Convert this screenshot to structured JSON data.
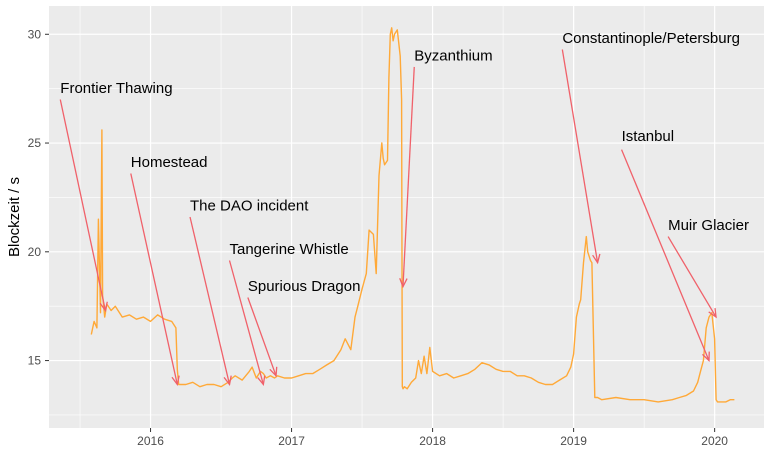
{
  "chart_data": {
    "type": "line",
    "ylabel": "Blockzeit / s",
    "xlabel": "",
    "title": "",
    "xlim": [
      2015.28,
      2020.35
    ],
    "ylim": [
      11.9,
      31.3
    ],
    "x_ticks": [
      2016,
      2017,
      2018,
      2019,
      2020
    ],
    "x_tick_labels": [
      "2016",
      "2017",
      "2018",
      "2019",
      "2020"
    ],
    "y_ticks": [
      15,
      20,
      25,
      30
    ],
    "y_tick_labels": [
      "15",
      "20",
      "25",
      "30"
    ],
    "grid": true,
    "colors": {
      "line": "#FFA938",
      "arrow": "#F0616A",
      "panel": "#EBEBEB",
      "grid": "#FFFFFF"
    },
    "series": [
      {
        "x": [
          2015.58,
          2015.6,
          2015.62,
          2015.63,
          2015.645,
          2015.655,
          2015.66,
          2015.675,
          2015.69,
          2015.72,
          2015.75,
          2015.8,
          2015.85,
          2015.9,
          2015.95,
          2016.0,
          2016.05,
          2016.1,
          2016.15,
          2016.18,
          2016.19,
          2016.2,
          2016.25,
          2016.3,
          2016.35,
          2016.4,
          2016.45,
          2016.5,
          2016.55,
          2016.58,
          2016.6,
          2016.65,
          2016.7,
          2016.72,
          2016.75,
          2016.78,
          2016.8,
          2016.82,
          2016.85,
          2016.88,
          2016.9,
          2016.95,
          2017.0,
          2017.05,
          2017.1,
          2017.15,
          2017.2,
          2017.25,
          2017.3,
          2017.35,
          2017.38,
          2017.42,
          2017.45,
          2017.47,
          2017.5,
          2017.53,
          2017.55,
          2017.58,
          2017.6,
          2017.62,
          2017.64,
          2017.65,
          2017.66,
          2017.68,
          2017.69,
          2017.7,
          2017.71,
          2017.72,
          2017.73,
          2017.75,
          2017.77,
          2017.78,
          2017.785,
          2017.79,
          2017.8,
          2017.82,
          2017.85,
          2017.88,
          2017.9,
          2017.92,
          2017.94,
          2017.96,
          2017.98,
          2018.0,
          2018.05,
          2018.1,
          2018.15,
          2018.2,
          2018.25,
          2018.3,
          2018.35,
          2018.4,
          2018.45,
          2018.5,
          2018.55,
          2018.6,
          2018.65,
          2018.7,
          2018.75,
          2018.8,
          2018.85,
          2018.9,
          2018.95,
          2018.98,
          2019.0,
          2019.02,
          2019.04,
          2019.05,
          2019.07,
          2019.09,
          2019.1,
          2019.12,
          2019.13,
          2019.15,
          2019.16,
          2019.17,
          2019.2,
          2019.3,
          2019.4,
          2019.5,
          2019.6,
          2019.7,
          2019.75,
          2019.8,
          2019.85,
          2019.88,
          2019.9,
          2019.92,
          2019.94,
          2019.96,
          2019.98,
          2020.0,
          2020.01,
          2020.02,
          2020.05,
          2020.08,
          2020.11,
          2020.14
        ],
        "y": [
          16.2,
          16.8,
          16.5,
          21.5,
          17.2,
          25.6,
          18.0,
          17.0,
          17.6,
          17.3,
          17.5,
          17.0,
          17.1,
          16.9,
          17.0,
          16.8,
          17.1,
          16.9,
          16.8,
          16.5,
          14.6,
          13.9,
          13.9,
          14.0,
          13.8,
          13.9,
          13.9,
          13.8,
          14.0,
          14.2,
          14.3,
          14.1,
          14.5,
          14.7,
          14.2,
          14.5,
          14.4,
          14.2,
          14.3,
          14.2,
          14.3,
          14.2,
          14.2,
          14.3,
          14.4,
          14.4,
          14.6,
          14.8,
          15.0,
          15.5,
          16.0,
          15.5,
          17.0,
          17.5,
          18.3,
          19.0,
          21.0,
          20.8,
          19.0,
          23.5,
          25.0,
          24.3,
          24.0,
          24.2,
          28.0,
          30.0,
          30.3,
          29.7,
          30.0,
          30.2,
          29.0,
          27.0,
          13.8,
          13.7,
          13.8,
          13.7,
          14.0,
          14.2,
          15.0,
          14.4,
          15.2,
          14.4,
          15.6,
          14.5,
          14.3,
          14.4,
          14.2,
          14.3,
          14.4,
          14.6,
          14.9,
          14.8,
          14.6,
          14.5,
          14.5,
          14.3,
          14.3,
          14.2,
          14.0,
          13.9,
          13.9,
          14.1,
          14.3,
          14.7,
          15.3,
          17.0,
          17.6,
          17.8,
          19.5,
          20.7,
          20.0,
          19.6,
          19.5,
          13.3,
          13.3,
          13.3,
          13.2,
          13.3,
          13.2,
          13.2,
          13.1,
          13.2,
          13.3,
          13.4,
          13.6,
          14.0,
          14.5,
          15.0,
          16.5,
          17.0,
          17.2,
          16.0,
          13.2,
          13.1,
          13.1,
          13.1,
          13.2,
          13.2
        ]
      }
    ],
    "annotations": [
      {
        "label": "Frontier Thawing",
        "text_x": 2015.36,
        "text_y": 27.3,
        "arrow_from": [
          2015.36,
          27.0
        ],
        "arrow_to": [
          2015.68,
          17.3
        ]
      },
      {
        "label": "Homestead",
        "text_x": 2015.86,
        "text_y": 23.9,
        "arrow_from": [
          2015.86,
          23.6
        ],
        "arrow_to": [
          2016.19,
          13.9
        ]
      },
      {
        "label": "The DAO incident",
        "text_x": 2016.28,
        "text_y": 21.9,
        "arrow_from": [
          2016.28,
          21.6
        ],
        "arrow_to": [
          2016.56,
          13.9
        ]
      },
      {
        "label": "Tangerine Whistle",
        "text_x": 2016.56,
        "text_y": 19.9,
        "arrow_from": [
          2016.56,
          19.6
        ],
        "arrow_to": [
          2016.8,
          13.9
        ]
      },
      {
        "label": "Spurious Dragon",
        "text_x": 2016.69,
        "text_y": 18.2,
        "arrow_from": [
          2016.69,
          17.9
        ],
        "arrow_to": [
          2016.89,
          14.3
        ]
      },
      {
        "label": "Byzanthium",
        "text_x": 2017.87,
        "text_y": 28.8,
        "arrow_from": [
          2017.87,
          28.5
        ],
        "arrow_to": [
          2017.79,
          18.4
        ]
      },
      {
        "label": "Constantinople/Petersburg",
        "text_x": 2018.92,
        "text_y": 29.6,
        "arrow_from": [
          2018.92,
          29.3
        ],
        "arrow_to": [
          2019.17,
          19.5
        ]
      },
      {
        "label": "Istanbul",
        "text_x": 2019.34,
        "text_y": 25.1,
        "arrow_from": [
          2019.34,
          24.7
        ],
        "arrow_to": [
          2019.96,
          15.0
        ]
      },
      {
        "label": "Muir Glacier",
        "text_x": 2019.67,
        "text_y": 21.0,
        "arrow_from": [
          2019.67,
          20.7
        ],
        "arrow_to": [
          2020.01,
          17.0
        ]
      }
    ]
  }
}
